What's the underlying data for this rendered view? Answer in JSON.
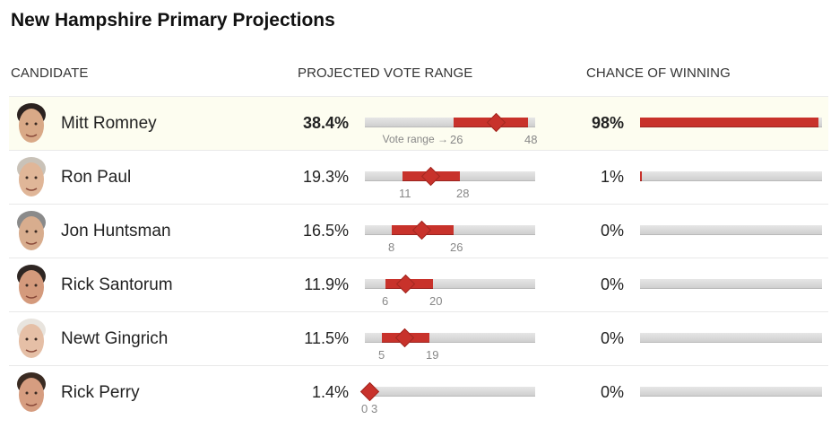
{
  "title": "New Hampshire Primary Projections",
  "headers": {
    "candidate": "CANDIDATE",
    "vote_range": "PROJECTED VOTE RANGE",
    "chance": "CHANCE OF WINNING"
  },
  "colors": {
    "accent": "#c8322b",
    "track": "#d8d8d8",
    "highlight_row": "#fdfdf0"
  },
  "vote_range_caption": "Vote range →",
  "chart_data": {
    "type": "table",
    "title": "New Hampshire Primary Projections",
    "columns": [
      "CANDIDATE",
      "PROJECTED VOTE RANGE",
      "CHANCE OF WINNING"
    ],
    "vote_axis": [
      0,
      100
    ],
    "chance_axis": [
      0,
      100
    ],
    "rows": [
      {
        "candidate": "Mitt Romney",
        "projected_label": "38.4%",
        "projected": 38.4,
        "low": 26,
        "high": 48,
        "chance_label": "98%",
        "chance": 98,
        "highlight": true,
        "skin": "#d9a987",
        "hair": "#2b2220"
      },
      {
        "candidate": "Ron Paul",
        "projected_label": "19.3%",
        "projected": 19.3,
        "low": 11,
        "high": 28,
        "chance_label": "1%",
        "chance": 1,
        "highlight": false,
        "skin": "#e0b698",
        "hair": "#c9c2b8"
      },
      {
        "candidate": "Jon Huntsman",
        "projected_label": "16.5%",
        "projected": 16.5,
        "low": 8,
        "high": 26,
        "chance_label": "0%",
        "chance": 0,
        "highlight": false,
        "skin": "#d8ad8e",
        "hair": "#8a8a8a"
      },
      {
        "candidate": "Rick Santorum",
        "projected_label": "11.9%",
        "projected": 11.9,
        "low": 6,
        "high": 20,
        "chance_label": "0%",
        "chance": 0,
        "highlight": false,
        "skin": "#d49a7c",
        "hair": "#2e2623"
      },
      {
        "candidate": "Newt Gingrich",
        "projected_label": "11.5%",
        "projected": 11.5,
        "low": 5,
        "high": 19,
        "chance_label": "0%",
        "chance": 0,
        "highlight": false,
        "skin": "#e5bfa6",
        "hair": "#e8e4de"
      },
      {
        "candidate": "Rick Perry",
        "projected_label": "1.4%",
        "projected": 1.4,
        "low": 0,
        "high": 3,
        "chance_label": "0%",
        "chance": 0,
        "highlight": false,
        "skin": "#d69d80",
        "hair": "#3a2b22"
      }
    ]
  }
}
